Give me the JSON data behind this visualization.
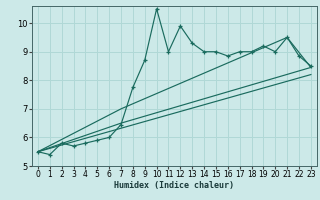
{
  "xlabel": "Humidex (Indice chaleur)",
  "xlim": [
    -0.5,
    23.5
  ],
  "ylim": [
    5,
    10.6
  ],
  "yticks": [
    5,
    6,
    7,
    8,
    9,
    10
  ],
  "xticks": [
    0,
    1,
    2,
    3,
    4,
    5,
    6,
    7,
    8,
    9,
    10,
    11,
    12,
    13,
    14,
    15,
    16,
    17,
    18,
    19,
    20,
    21,
    22,
    23
  ],
  "bg_color": "#cce9e8",
  "line_color": "#1a6b5e",
  "grid_color": "#b0d8d6",
  "main_line_x": [
    0,
    1,
    2,
    3,
    4,
    5,
    6,
    7,
    8,
    9,
    10,
    11,
    12,
    13,
    14,
    15,
    16,
    17,
    18,
    19,
    20,
    21,
    22,
    23
  ],
  "main_line_y": [
    5.5,
    5.4,
    5.8,
    5.7,
    5.8,
    5.9,
    6.0,
    6.45,
    7.75,
    8.7,
    10.5,
    9.0,
    9.9,
    9.3,
    9.0,
    9.0,
    8.85,
    9.0,
    9.0,
    9.2,
    9.0,
    9.5,
    8.85,
    8.5
  ],
  "line2_x": [
    0,
    7,
    23
  ],
  "line2_y": [
    5.5,
    6.5,
    8.45
  ],
  "line3_x": [
    0,
    7,
    21,
    23
  ],
  "line3_y": [
    5.5,
    7.0,
    9.5,
    8.45
  ],
  "line4_x": [
    0,
    23
  ],
  "line4_y": [
    5.5,
    8.2
  ]
}
